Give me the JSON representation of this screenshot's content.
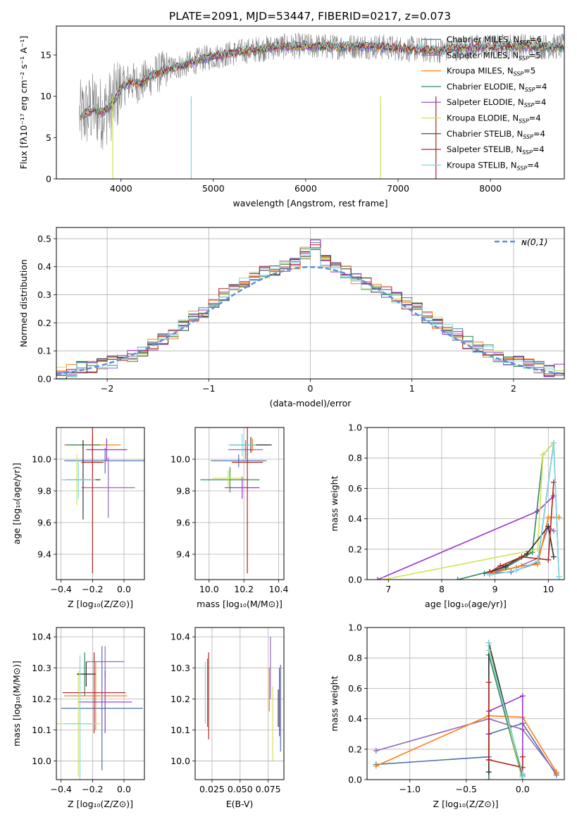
{
  "figure_title": "PLATE=2091, MJD=53447, FIBERID=0217, z=0.073",
  "series_colors": [
    "#4c72b0",
    "#9467bd",
    "#ff7f0e",
    "#2e8b57",
    "#9932cc",
    "#d4e157",
    "#333333",
    "#b22222",
    "#80d8e0"
  ],
  "chart_data": [
    {
      "id": "spectrum",
      "type": "line",
      "xlabel": "wavelength [Angstrom, rest frame]",
      "ylabel": "Flux [fλ10⁻¹⁷ erg cm⁻² s⁻¹ A⁻¹]",
      "xlim": [
        3300,
        8800
      ],
      "ylim": [
        0,
        18.5
      ],
      "xticks": [
        4000,
        5000,
        6000,
        7000,
        8000
      ],
      "yticks": [
        0,
        5,
        10,
        15
      ],
      "legend_position": "top-right",
      "legend": [
        {
          "model": "Chabrier MILES",
          "nssp": "6"
        },
        {
          "model": "Salpeter MILES",
          "nssp": "5"
        },
        {
          "model": "Kroupa MILES",
          "nssp": "5"
        },
        {
          "model": "Chabrier ELODIE",
          "nssp": "4"
        },
        {
          "model": "Salpeter ELODIE",
          "nssp": "4"
        },
        {
          "model": "Kroupa ELODIE",
          "nssp": "4"
        },
        {
          "model": "Chabrier STELIB",
          "nssp": "4"
        },
        {
          "model": "Salpeter STELIB",
          "nssp": "4"
        },
        {
          "model": "Kroupa STELIB",
          "nssp": "4"
        }
      ],
      "continuum": {
        "x": [
          3550,
          3700,
          3800,
          3900,
          4000,
          4100,
          4200,
          4300,
          4500,
          4700,
          4900,
          5100,
          5300,
          5500,
          5700,
          6000,
          6300,
          6600,
          6800,
          7000,
          7200,
          7400,
          7600,
          7800,
          8000,
          8300,
          8600,
          8800
        ],
        "y": [
          7.5,
          8.5,
          8.0,
          9.0,
          11.0,
          11.8,
          11.5,
          12.3,
          13.3,
          13.8,
          14.6,
          15.0,
          15.4,
          15.7,
          16.0,
          16.1,
          16.0,
          16.1,
          16.0,
          15.8,
          15.7,
          15.5,
          15.8,
          15.9,
          16.0,
          16.1,
          16.0,
          16.0
        ]
      }
    },
    {
      "id": "residuals",
      "type": "line",
      "xlabel": "(data-model)/error",
      "ylabel": "Normed distribution",
      "xlim": [
        -2.5,
        2.5
      ],
      "ylim": [
        0,
        0.54
      ],
      "xticks": [
        -2,
        -1,
        0,
        1,
        2
      ],
      "xticklabels": [
        "−2",
        "−1",
        "0",
        "1",
        "2"
      ],
      "yticks": [
        0.0,
        0.1,
        0.2,
        0.3,
        0.4,
        0.5
      ],
      "yticklabels": [
        "0.0",
        "0.1",
        "0.2",
        "0.3",
        "0.4",
        "0.5"
      ],
      "grid": true,
      "legend": "ɴ(0,1)",
      "legend_position": "top-right",
      "bin_width": 0.1,
      "hist_centers": [
        -2.45,
        -2.35,
        -2.25,
        -2.15,
        -2.05,
        -1.95,
        -1.85,
        -1.75,
        -1.65,
        -1.55,
        -1.45,
        -1.35,
        -1.25,
        -1.15,
        -1.05,
        -0.95,
        -0.85,
        -0.75,
        -0.65,
        -0.55,
        -0.45,
        -0.35,
        -0.25,
        -0.15,
        -0.05,
        0.05,
        0.15,
        0.25,
        0.35,
        0.45,
        0.55,
        0.65,
        0.75,
        0.85,
        0.95,
        1.05,
        1.15,
        1.25,
        1.35,
        1.45,
        1.55,
        1.65,
        1.75,
        1.85,
        1.95,
        2.05,
        2.15,
        2.25,
        2.35,
        2.45
      ],
      "hist_values": [
        0.02,
        0.03,
        0.04,
        0.04,
        0.05,
        0.06,
        0.07,
        0.08,
        0.1,
        0.12,
        0.14,
        0.16,
        0.19,
        0.22,
        0.24,
        0.27,
        0.3,
        0.33,
        0.35,
        0.37,
        0.38,
        0.39,
        0.4,
        0.41,
        0.45,
        0.48,
        0.42,
        0.4,
        0.38,
        0.36,
        0.34,
        0.33,
        0.31,
        0.29,
        0.27,
        0.25,
        0.22,
        0.2,
        0.18,
        0.16,
        0.13,
        0.11,
        0.1,
        0.08,
        0.07,
        0.06,
        0.05,
        0.04,
        0.03,
        0.03
      ]
    },
    {
      "id": "age-vs-Z",
      "type": "scatter",
      "xlabel": "Z [log₁₀(Z/Z⊙)]",
      "ylabel": "age  [log₁₀(age/yr)]",
      "xlim": [
        -0.43,
        0.13
      ],
      "ylim": [
        9.24,
        10.2
      ],
      "xticks": [
        -0.4,
        -0.2,
        0.0
      ],
      "xticklabels": [
        "−0.4",
        "−0.2",
        "0.0"
      ],
      "yticks": [
        9.4,
        9.6,
        9.8,
        10.0
      ],
      "yticklabels": [
        "9.4",
        "9.6",
        "9.8",
        "10.0"
      ],
      "grid": true,
      "points": [
        {
          "x": -0.12,
          "y": 9.99,
          "xerr": 0.26,
          "yerr": 0.08
        },
        {
          "x": -0.1,
          "y": 9.82,
          "xerr": 0.17,
          "yerr": 0.19
        },
        {
          "x": -0.2,
          "y": 10.09,
          "xerr": 0.18,
          "yerr": 0.06
        },
        {
          "x": -0.26,
          "y": 10.09,
          "xerr": 0.11,
          "yerr": 0.03
        },
        {
          "x": -0.11,
          "y": 10.06,
          "xerr": 0.13,
          "yerr": 0.07
        },
        {
          "x": -0.3,
          "y": 9.87,
          "xerr": 0.08,
          "yerr": 0.16
        },
        {
          "x": -0.26,
          "y": 9.87,
          "xerr": 0.11,
          "yerr": 0.25
        },
        {
          "x": -0.2,
          "y": 9.98,
          "xerr": 0.07,
          "yerr": 0.7
        },
        {
          "x": -0.29,
          "y": 9.87,
          "xerr": 0.11,
          "yerr": 0.12
        }
      ]
    },
    {
      "id": "age-vs-mass",
      "type": "scatter",
      "xlabel": "mass [log₁₀(M/M⊙)]",
      "ylabel": "",
      "xlim": [
        9.92,
        10.43
      ],
      "ylim": [
        9.24,
        10.2
      ],
      "xticks": [
        10.0,
        10.2,
        10.4
      ],
      "xticklabels": [
        "10.0",
        "10.2",
        "10.4"
      ],
      "yticks": [
        9.4,
        9.6,
        9.8,
        10.0
      ],
      "yticklabels": [
        "9.4",
        "9.6",
        "9.8",
        "10.0"
      ],
      "grid": true,
      "points": [
        {
          "x": 10.17,
          "y": 9.99,
          "xerr": 0.16,
          "yerr": 0.04
        },
        {
          "x": 10.21,
          "y": 10.06,
          "xerr": 0.1,
          "yerr": 0.06
        },
        {
          "x": 10.25,
          "y": 10.09,
          "xerr": 0.09,
          "yerr": 0.04
        },
        {
          "x": 10.12,
          "y": 9.87,
          "xerr": 0.17,
          "yerr": 0.08
        },
        {
          "x": 10.19,
          "y": 9.82,
          "xerr": 0.1,
          "yerr": 0.07
        },
        {
          "x": 10.11,
          "y": 9.88,
          "xerr": 0.09,
          "yerr": 0.05
        },
        {
          "x": 10.24,
          "y": 10.09,
          "xerr": 0.12,
          "yerr": 0.05
        },
        {
          "x": 10.22,
          "y": 9.98,
          "xerr": 0.09,
          "yerr": 0.7
        },
        {
          "x": 10.19,
          "y": 10.09,
          "xerr": 0.08,
          "yerr": 0.07
        }
      ]
    },
    {
      "id": "massweight-vs-age",
      "type": "line",
      "xlabel": "age  [log₁₀(age/yr)]",
      "ylabel": "mass weight",
      "xlim": [
        6.6,
        10.3
      ],
      "ylim": [
        0,
        1
      ],
      "xticks": [
        7,
        8,
        9,
        10
      ],
      "xticklabels": [
        "7",
        "8",
        "9",
        "10"
      ],
      "yticks": [
        0,
        0.2,
        0.4,
        0.6,
        0.8,
        1.0
      ],
      "yticklabels": [
        "0.0",
        "0.2",
        "0.4",
        "0.6",
        "0.8",
        "1.0"
      ],
      "grid": true,
      "series": [
        {
          "x": [
            8.8,
            9.3,
            9.8,
            10.1,
            10.2
          ],
          "y": [
            0.04,
            0.05,
            0.11,
            0.9,
            0.02
          ]
        },
        {
          "x": [
            8.9,
            9.4,
            9.8,
            10.0,
            10.1
          ],
          "y": [
            0.05,
            0.08,
            0.14,
            0.35,
            0.32
          ]
        },
        {
          "x": [
            8.9,
            9.5,
            9.8,
            10.0,
            10.2
          ],
          "y": [
            0.04,
            0.09,
            0.1,
            0.41,
            0.41
          ]
        },
        {
          "x": [
            8.3,
            9.2,
            9.7,
            9.9,
            10.1
          ],
          "y": [
            0.0,
            0.08,
            0.18,
            0.82,
            0.9
          ]
        },
        {
          "x": [
            6.8,
            9.8,
            10.1
          ],
          "y": [
            0.0,
            0.45,
            0.55
          ]
        },
        {
          "x": [
            6.9,
            9.8,
            9.9,
            10.1
          ],
          "y": [
            0.0,
            0.2,
            0.82,
            0.9
          ]
        },
        {
          "x": [
            8.9,
            9.2,
            9.6,
            10.0,
            10.1
          ],
          "y": [
            0.05,
            0.09,
            0.17,
            0.35,
            0.15
          ]
        },
        {
          "x": [
            8.9,
            9.1,
            9.5,
            10.0,
            10.1
          ],
          "y": [
            0.05,
            0.09,
            0.15,
            0.13,
            0.64
          ]
        },
        {
          "x": [
            8.9,
            9.4,
            9.8,
            10.1,
            10.2
          ],
          "y": [
            0.03,
            0.06,
            0.12,
            0.9,
            0.02
          ]
        }
      ]
    },
    {
      "id": "mass-vs-Z",
      "type": "scatter",
      "xlabel": "Z [log₁₀(Z/Z⊙)]",
      "ylabel": "mass [log₁₀(M/M⊙)]",
      "xlim": [
        -0.43,
        0.13
      ],
      "ylim": [
        9.94,
        10.43
      ],
      "xticks": [
        -0.4,
        -0.2,
        0.0
      ],
      "xticklabels": [
        "−0.4",
        "−0.2",
        "0.0"
      ],
      "yticks": [
        10.0,
        10.1,
        10.2,
        10.3,
        10.4
      ],
      "yticklabels": [
        "10.0",
        "10.1",
        "10.2",
        "10.3",
        "10.4"
      ],
      "grid": true,
      "points": [
        {
          "x": -0.14,
          "y": 10.17,
          "xerr": 0.26,
          "yerr": 0.2
        },
        {
          "x": -0.12,
          "y": 10.32,
          "xerr": 0.12,
          "yerr": 0.05
        },
        {
          "x": -0.18,
          "y": 10.21,
          "xerr": 0.2,
          "yerr": 0.11
        },
        {
          "x": -0.25,
          "y": 10.28,
          "xerr": 0.05,
          "yerr": 0.07
        },
        {
          "x": -0.12,
          "y": 10.19,
          "xerr": 0.17,
          "yerr": 0.1
        },
        {
          "x": -0.29,
          "y": 10.12,
          "xerr": 0.14,
          "yerr": 0.17
        },
        {
          "x": -0.24,
          "y": 10.28,
          "xerr": 0.06,
          "yerr": 0.04
        },
        {
          "x": -0.19,
          "y": 10.22,
          "xerr": 0.2,
          "yerr": 0.13
        },
        {
          "x": -0.28,
          "y": 10.12,
          "xerr": 0.1,
          "yerr": 0.22
        }
      ]
    },
    {
      "id": "mass-vs-ebv",
      "type": "scatter",
      "xlabel": "E(B-V)",
      "ylabel": "",
      "xlim": [
        0.01,
        0.089
      ],
      "ylim": [
        9.94,
        10.43
      ],
      "xticks": [
        0.025,
        0.05,
        0.075
      ],
      "xticklabels": [
        "0.025",
        "0.050",
        "0.075"
      ],
      "yticks": [
        10.0,
        10.1,
        10.2,
        10.3,
        10.4
      ],
      "yticklabels": [
        "10.0",
        "10.1",
        "10.2",
        "10.3",
        "10.4"
      ],
      "grid": true,
      "points": [
        {
          "x": 0.086,
          "y": 10.17,
          "xerr": 0.0,
          "yerr": 0.14
        },
        {
          "x": 0.077,
          "y": 10.3,
          "xerr": 0.0,
          "yerr": 0.1
        },
        {
          "x": 0.076,
          "y": 10.23,
          "xerr": 0.0,
          "yerr": 0.07
        },
        {
          "x": 0.021,
          "y": 10.22,
          "xerr": 0.0,
          "yerr": 0.11
        },
        {
          "x": 0.085,
          "y": 10.19,
          "xerr": 0.0,
          "yerr": 0.11
        },
        {
          "x": 0.079,
          "y": 10.12,
          "xerr": 0.0,
          "yerr": 0.12
        },
        {
          "x": 0.084,
          "y": 10.17,
          "xerr": 0.0,
          "yerr": 0.06
        },
        {
          "x": 0.022,
          "y": 10.21,
          "xerr": 0.0,
          "yerr": 0.14
        },
        {
          "x": 0.019,
          "y": 10.22,
          "xerr": 0.0,
          "yerr": 0.1
        }
      ]
    },
    {
      "id": "massweight-vs-Z",
      "type": "line",
      "xlabel": "Z [log₁₀(Z/Z⊙)]",
      "ylabel": "mass weight",
      "xlim": [
        -1.38,
        0.37
      ],
      "ylim": [
        0,
        1
      ],
      "xticks": [
        -1.0,
        -0.5,
        0.0
      ],
      "xticklabels": [
        "−1.0",
        "−0.5",
        "0.0"
      ],
      "yticks": [
        0,
        0.2,
        0.4,
        0.6,
        0.8,
        1.0
      ],
      "yticklabels": [
        "0.0",
        "0.2",
        "0.4",
        "0.6",
        "0.8",
        "1.0"
      ],
      "grid": true,
      "series": [
        {
          "x": [
            -1.3,
            -0.3,
            -0.3,
            0.0,
            0.3
          ],
          "y": [
            0.1,
            0.15,
            0.3,
            0.37,
            0.03
          ]
        },
        {
          "x": [
            -1.3,
            -0.3,
            0.0,
            0.3
          ],
          "y": [
            0.19,
            0.4,
            0.33,
            0.04
          ]
        },
        {
          "x": [
            -1.3,
            -0.3,
            0.0,
            0.3
          ],
          "y": [
            0.09,
            0.42,
            0.41,
            0.05
          ]
        },
        {
          "x": [
            -0.3,
            -0.3,
            0.0,
            0.0
          ],
          "y": [
            0.0,
            0.82,
            0.0,
            0.03
          ]
        },
        {
          "x": [
            -0.3,
            -0.3,
            0.0,
            0.0
          ],
          "y": [
            0.3,
            0.45,
            0.55,
            0.02
          ]
        },
        {
          "x": [
            -0.3,
            -0.3,
            0.0
          ],
          "y": [
            0.2,
            0.88,
            0.0
          ]
        },
        {
          "x": [
            -0.3,
            -0.3,
            0.0
          ],
          "y": [
            0.05,
            0.9,
            0.02
          ]
        },
        {
          "x": [
            -0.3,
            -0.3,
            -0.3,
            0.0,
            0.0
          ],
          "y": [
            0.64,
            0.13,
            0.13,
            0.08,
            0.15
          ]
        },
        {
          "x": [
            -0.3,
            -0.3,
            0.0,
            0.0
          ],
          "y": [
            0.9,
            0.85,
            0.04,
            0.02
          ]
        }
      ]
    }
  ]
}
